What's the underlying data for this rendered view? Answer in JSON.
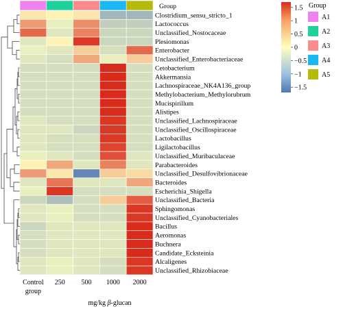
{
  "chart_data": {
    "type": "heatmap",
    "rows": [
      "Clostridium_sensu_stricto_1",
      "Lactococcus",
      "Unclassified_Nostocaceae",
      "Plesiomonas",
      "Enterobacter",
      "Unclassified_Enterobacteriaceae",
      "Cetobacterium",
      "Akkermansia",
      "Lachnospiraceae_NK4A136_group",
      "Methylobacterium_Methylorubrum",
      "Mucispirillum",
      "Alistipes",
      "Unclassified_Lachnospiraceae",
      "Unclassified_Oscillospiraceae",
      "Lactobacillus",
      "Ligilactobacillus",
      "Unclassified_Muribaculaceae",
      "Parabacteroides",
      "Unclassified_Desulfovibrionaceae",
      "Bacteroides",
      "Escherichia_Shigella",
      "Unclassified_Bacteria",
      "Sphingomonas",
      "Unclassified_Cyanobacteriales",
      "Bacillus",
      "Aeromonas",
      "Buchnera",
      "Candidate_Ecksteinia",
      "Alcaligenes",
      "Unclassified_Rhizobiaceae"
    ],
    "columns": [
      "A1",
      "A2",
      "A3",
      "A4",
      "A5"
    ],
    "column_labels": [
      {
        "line1": "Control",
        "line2": "group"
      },
      {
        "line1": "250",
        "line2": ""
      },
      {
        "line1": "500",
        "line2": ""
      },
      {
        "line1": "1000",
        "line2": ""
      },
      {
        "line1": "2000",
        "line2": ""
      }
    ],
    "x_title": "mg/kg β-glucan",
    "values": [
      [
        0.2,
        0.1,
        0.2,
        -0.9,
        -0.9
      ],
      [
        0.8,
        -0.2,
        0.9,
        -0.6,
        -0.6
      ],
      [
        1.2,
        -0.3,
        1.0,
        -0.5,
        -0.5
      ],
      [
        -0.3,
        0.1,
        1.6,
        -0.5,
        -0.5
      ],
      [
        -0.2,
        -0.3,
        0.4,
        -0.4,
        1.2
      ],
      [
        -0.3,
        -0.4,
        0.7,
        -0.2,
        0.4
      ],
      [
        -0.4,
        -0.4,
        -0.4,
        1.7,
        -0.4
      ],
      [
        -0.4,
        -0.4,
        -0.4,
        1.7,
        -0.4
      ],
      [
        -0.4,
        -0.4,
        -0.4,
        1.7,
        -0.4
      ],
      [
        -0.4,
        -0.4,
        -0.4,
        1.7,
        -0.4
      ],
      [
        -0.4,
        -0.4,
        -0.4,
        1.7,
        -0.4
      ],
      [
        -0.4,
        -0.4,
        -0.4,
        1.7,
        -0.4
      ],
      [
        -0.3,
        -0.4,
        -0.4,
        1.6,
        -0.4
      ],
      [
        -0.3,
        -0.3,
        -0.5,
        1.6,
        -0.4
      ],
      [
        -0.3,
        -0.4,
        -0.4,
        1.6,
        -0.4
      ],
      [
        -0.3,
        -0.4,
        -0.4,
        1.5,
        -0.4
      ],
      [
        -0.2,
        -0.3,
        -0.4,
        1.4,
        -0.3
      ],
      [
        0.1,
        0.7,
        -0.3,
        1.0,
        -0.3
      ],
      [
        0.8,
        0.2,
        -1.5,
        0.4,
        0.3
      ],
      [
        -0.3,
        1.1,
        -0.3,
        -0.3,
        0.7
      ],
      [
        -0.2,
        1.6,
        -0.4,
        -0.4,
        -0.4
      ],
      [
        -0.5,
        -0.8,
        -0.4,
        0.4,
        1.3
      ],
      [
        -0.3,
        -0.2,
        -0.4,
        -0.4,
        1.6
      ],
      [
        -0.3,
        -0.2,
        -0.4,
        -0.4,
        1.6
      ],
      [
        -0.5,
        -0.3,
        -0.3,
        -0.3,
        1.7
      ],
      [
        -0.4,
        -0.3,
        -0.3,
        -0.3,
        1.7
      ],
      [
        -0.4,
        -0.3,
        -0.3,
        -0.3,
        1.7
      ],
      [
        -0.4,
        -0.3,
        -0.3,
        -0.3,
        1.7
      ],
      [
        -0.3,
        -0.2,
        -0.3,
        -0.4,
        1.6
      ],
      [
        -0.3,
        -0.2,
        -0.3,
        -0.4,
        1.6
      ]
    ],
    "group_annotation": {
      "label": "Group",
      "colors": [
        "#ee82ee",
        "#1dd39b",
        "#fa8c8c",
        "#19b8f2",
        "#b4bb0b"
      ]
    },
    "colorbar": {
      "ticks": [
        1.5,
        1,
        0.5,
        0,
        -0.5,
        -1,
        -1.5
      ],
      "tick_labels": [
        "1.5",
        "1",
        "0.5",
        "0",
        "−0.5",
        "−1",
        "−1.5"
      ],
      "range": [
        -1.7,
        1.7
      ],
      "colors": [
        "#4f77b7",
        "#ffffbf",
        "#d92b1b"
      ]
    },
    "legend": {
      "title": "Group",
      "entries": [
        "A1",
        "A2",
        "A3",
        "A4",
        "A5"
      ],
      "placement": "top-right"
    },
    "dendrogram": "left"
  }
}
